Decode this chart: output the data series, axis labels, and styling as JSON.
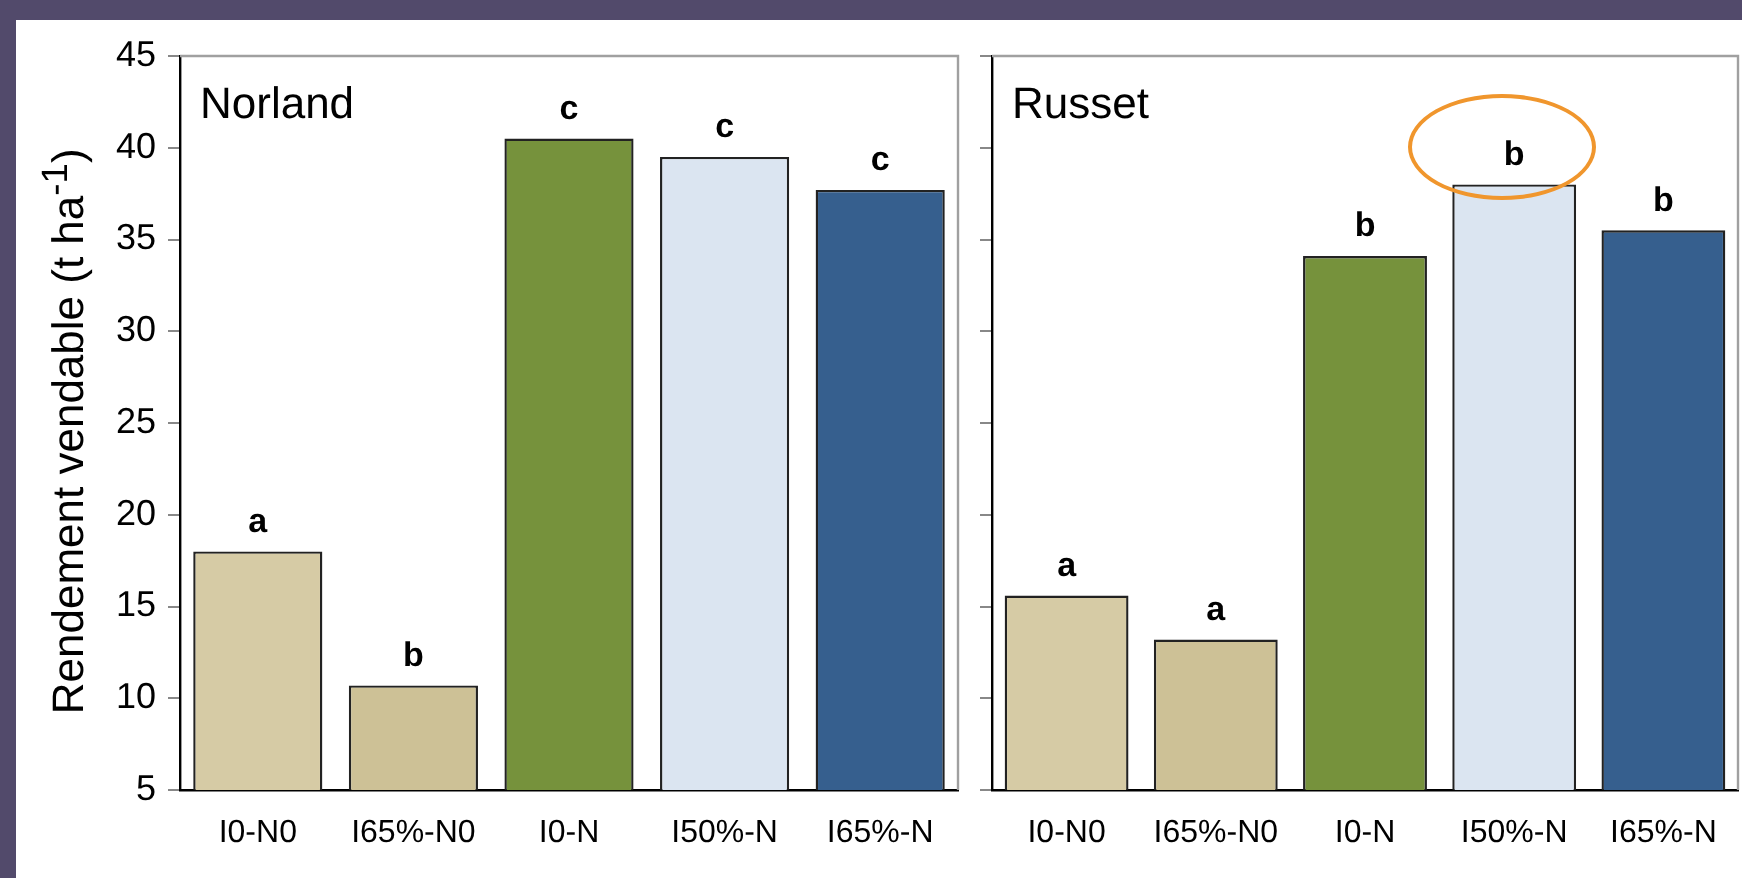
{
  "chart_data": [
    {
      "type": "bar",
      "title": "Norland",
      "ylabel": "Rendement vendable (t ha$^{-1}$)",
      "categories": [
        "I0-N0",
        "I65%-N0",
        "I0-N",
        "I50%-N",
        "I65%-N"
      ],
      "values": [
        18.0,
        10.7,
        40.5,
        39.5,
        37.7
      ],
      "colors": [
        "#d6cba5",
        "#cdc196",
        "#76923c",
        "#dbe5f1",
        "#365f8e"
      ],
      "ylim": [
        5,
        45
      ],
      "yticks": [
        5,
        10,
        15,
        20,
        25,
        30,
        35,
        40,
        45
      ],
      "grid": false,
      "legend": false,
      "annotations": [
        {
          "text": "a",
          "x": "I0-N0",
          "y": 18.0
        },
        {
          "text": "b",
          "x": "I65%-N0",
          "y": 10.7
        },
        {
          "text": "c",
          "x": "I0-N",
          "y": 40.5
        },
        {
          "text": "c",
          "x": "I50%-N",
          "y": 39.5
        },
        {
          "text": "c",
          "x": "I65%-N",
          "y": 37.7
        }
      ]
    },
    {
      "type": "bar",
      "title": "Russet",
      "categories": [
        "I0-N0",
        "I65%-N0",
        "I0-N",
        "I50%-N",
        "I65%-N"
      ],
      "values": [
        15.6,
        13.2,
        34.1,
        38.0,
        35.5
      ],
      "colors": [
        "#d6cba5",
        "#cdc196",
        "#76923c",
        "#dbe5f1",
        "#365f8e"
      ],
      "ylim": [
        5,
        45
      ],
      "yticks": [
        5,
        10,
        15,
        20,
        25,
        30,
        35,
        40,
        45
      ],
      "grid": false,
      "legend": false,
      "tick_labels": "x",
      "annotations": [
        {
          "text": "a",
          "x": "I0-N0",
          "y": 15.6
        },
        {
          "text": "a",
          "x": "I65%-N0",
          "y": 13.2
        },
        {
          "text": "b",
          "x": "I0-N",
          "y": 34.1
        },
        {
          "text": "b",
          "x": "I50%-N",
          "y": 38.0
        },
        {
          "text": "b",
          "x": "I65%-N",
          "y": 35.5
        }
      ]
    }
  ]
}
